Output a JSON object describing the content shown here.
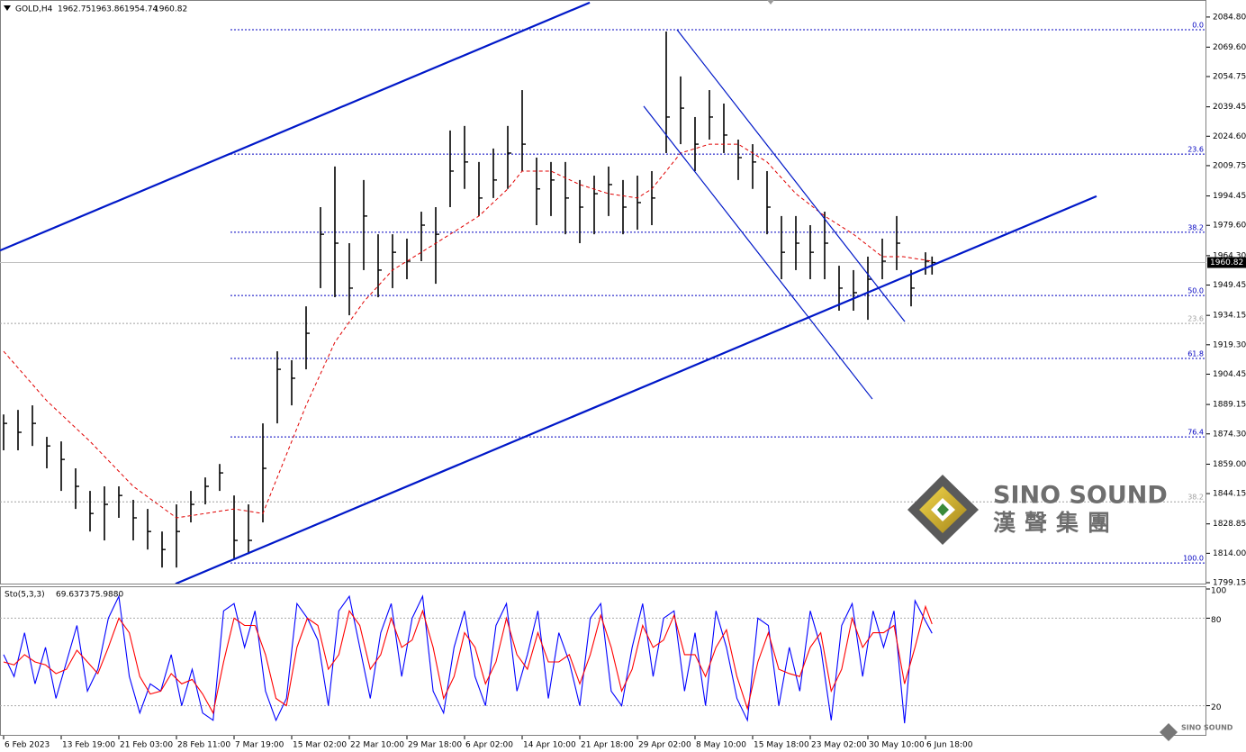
{
  "chart_data": {
    "type": "hlc",
    "symbol": "GOLD,H4",
    "ohlc": [
      1962.75,
      1963.86,
      1954.74,
      1960.82
    ],
    "last_price": 1960.82,
    "color": "#000000",
    "x": [
      0,
      11,
      22,
      33,
      44,
      55,
      66,
      77,
      88,
      99,
      110,
      121,
      132,
      143,
      154,
      165,
      176,
      187,
      198,
      209,
      220,
      231,
      242,
      253,
      264,
      275,
      286,
      297,
      308,
      319,
      330,
      341,
      352,
      363,
      374,
      385,
      396,
      407,
      418,
      429,
      440,
      451,
      462,
      473,
      484,
      495,
      506,
      517,
      528,
      539,
      550,
      561,
      572,
      583,
      594,
      605,
      616,
      627,
      638,
      649,
      660,
      671,
      682,
      693,
      704,
      709
    ],
    "high": [
      1884.1,
      1886.4,
      1888.7,
      1872.8,
      1870.5,
      1856.9,
      1845.5,
      1847.8,
      1847.8,
      1841.0,
      1836.4,
      1825.0,
      1838.7,
      1845.5,
      1852.3,
      1859.1,
      1843.2,
      1838.7,
      1879.6,
      1916.0,
      1911.5,
      1938.7,
      1988.8,
      2009.3,
      1970.6,
      2002.5,
      1975.1,
      1975.1,
      1972.9,
      1986.5,
      1988.8,
      2027.5,
      2029.8,
      2011.6,
      2018.4,
      2029.8,
      2047.9,
      2013.8,
      2011.6,
      2011.6,
      2002.5,
      2004.7,
      2009.3,
      2002.5,
      2004.7,
      2007.0,
      2077.5,
      2054.8,
      2034.3,
      2047.9,
      2041.1,
      2022.9,
      2020.6,
      2007.0,
      1984.3,
      1984.3,
      1979.7,
      1986.5,
      1959.2,
      1957.0,
      1963.8,
      1972.9,
      1984.3,
      1957.0,
      1966.0,
      1963.86
    ],
    "low": [
      1866.0,
      1866.0,
      1868.2,
      1856.9,
      1845.5,
      1836.4,
      1825.0,
      1820.5,
      1831.9,
      1820.5,
      1815.9,
      1806.8,
      1806.8,
      1829.6,
      1838.7,
      1845.5,
      1811.4,
      1813.6,
      1829.6,
      1879.6,
      1888.7,
      1906.9,
      1947.9,
      1943.3,
      1934.2,
      1957.0,
      1943.3,
      1947.9,
      1952.4,
      1961.5,
      1950.1,
      1988.8,
      1998.0,
      1984.3,
      1993.4,
      1998.0,
      2007.0,
      1979.7,
      1984.3,
      1975.1,
      1970.6,
      1975.1,
      1984.3,
      1975.1,
      1977.4,
      1979.7,
      2016.1,
      2020.6,
      2007.0,
      2022.9,
      2016.1,
      2002.5,
      1998.0,
      1975.1,
      1952.4,
      1957.0,
      1952.4,
      1952.4,
      1936.5,
      1936.5,
      1931.9,
      1952.4,
      1957.0,
      1938.7,
      1954.7,
      1954.74
    ],
    "close": [
      1879.6,
      1875.1,
      1879.6,
      1868.2,
      1861.4,
      1847.8,
      1834.1,
      1838.7,
      1843.2,
      1831.9,
      1825.0,
      1815.9,
      1825.0,
      1838.7,
      1847.8,
      1854.6,
      1820.5,
      1820.5,
      1856.9,
      1906.9,
      1902.4,
      1925.1,
      1975.1,
      1970.6,
      1947.9,
      1984.3,
      1957.0,
      1966.0,
      1961.5,
      1979.7,
      1975.1,
      2007.0,
      2011.6,
      1993.4,
      2002.5,
      2016.1,
      2020.6,
      1998.0,
      2002.5,
      1993.4,
      1988.8,
      1995.6,
      2000.2,
      1988.8,
      1991.1,
      1993.4,
      2034.3,
      2038.8,
      2020.6,
      2034.3,
      2025.2,
      2013.8,
      2011.6,
      1988.8,
      1966.0,
      1970.6,
      1966.0,
      1970.6,
      1947.9,
      1945.6,
      1952.4,
      1961.5,
      1970.6,
      1947.9,
      1961.5,
      1960.82
    ],
    "ma": {
      "color": "#e00000",
      "x": [
        0,
        33,
        66,
        99,
        132,
        154,
        176,
        198,
        209,
        231,
        253,
        275,
        297,
        319,
        341,
        363,
        385,
        396,
        418,
        440,
        462,
        484,
        495,
        517,
        539,
        561,
        583,
        605,
        627,
        649,
        671,
        687,
        709
      ],
      "values": [
        1916.0,
        1891.0,
        1870.5,
        1847.8,
        1831.9,
        1834.1,
        1836.4,
        1834.1,
        1852.3,
        1888.7,
        1920.6,
        1941.0,
        1957.0,
        1966.0,
        1975.1,
        1984.3,
        1998.0,
        2007.0,
        2007.0,
        2000.2,
        1995.6,
        1993.4,
        1998.0,
        2016.1,
        2020.6,
        2020.6,
        2011.6,
        1995.6,
        1984.3,
        1975.1,
        1963.8,
        1963.8,
        1961.5
      ]
    },
    "xlim": [
      -2.75,
      918.5
    ],
    "xticks": [
      {
        "value": 0,
        "label": "6 Feb 2023"
      },
      {
        "value": 44,
        "label": "13 Feb 19:00"
      },
      {
        "value": 88,
        "label": "21 Feb 03:00"
      },
      {
        "value": 132,
        "label": "28 Feb 11:00"
      },
      {
        "value": 176,
        "label": "7 Mar 19:00"
      },
      {
        "value": 220,
        "label": "15 Mar 02:00"
      },
      {
        "value": 264,
        "label": "22 Mar 10:00"
      },
      {
        "value": 308,
        "label": "29 Mar 18:00"
      },
      {
        "value": 352,
        "label": "6 Apr 02:00"
      },
      {
        "value": 396,
        "label": "14 Apr 10:00"
      },
      {
        "value": 440,
        "label": "21 Apr 18:00"
      },
      {
        "value": 484,
        "label": "29 Apr 02:00"
      },
      {
        "value": 528,
        "label": "8 May 10:00"
      },
      {
        "value": 572,
        "label": "15 May 18:00"
      },
      {
        "value": 616,
        "label": "23 May 02:00"
      },
      {
        "value": 660,
        "label": "30 May 10:00"
      },
      {
        "value": 704,
        "label": "6 Jun 18:00"
      }
    ],
    "ylim": [
      1798.7,
      2093.4
    ],
    "yticks": [
      {
        "value": 2084.8,
        "label": "2084.80"
      },
      {
        "value": 2069.6,
        "label": "2069.60"
      },
      2054.75,
      2039.45,
      {
        "value": 2024.6,
        "label": "2024.60"
      },
      2009.75,
      1994.45,
      {
        "value": 1979.6,
        "label": "1979.60"
      },
      {
        "value": 1964.3,
        "label": "1964.30"
      },
      1949.45,
      1934.15,
      {
        "value": 1919.3,
        "label": "1919.30"
      },
      1904.45,
      1889.15,
      {
        "value": 1874.3,
        "label": "1874.30"
      },
      {
        "value": 1859,
        "label": "1859.00"
      },
      1844.15,
      1828.85,
      {
        "value": 1814,
        "label": "1814.00"
      },
      1799.15
    ],
    "fib_color": "#0000c0",
    "fib_levels": [
      {
        "value": 2078.4,
        "label": "0.0"
      },
      {
        "value": 2015.6,
        "label": "23.6"
      },
      {
        "value": 1976.1,
        "label": "38.2"
      },
      {
        "value": 1944.2,
        "label": "50.0"
      },
      {
        "value": 1912.4,
        "label": "61.8"
      },
      {
        "value": 1872.8,
        "label": "76.4"
      },
      {
        "value": 1809.1,
        "label": "100.0"
      }
    ],
    "old_fib_color": "#a0a0a0",
    "old_fib_levels": [
      {
        "value": 1930.1,
        "label": "23.6"
      },
      {
        "value": 1840.0,
        "label": "38.2"
      }
    ],
    "line_color": "#0018c8",
    "channel_lines": [
      {
        "x": [
          -2.75,
          447.6
        ],
        "y": [
          1966.9,
          2092.1
        ]
      },
      {
        "x": [
          131.3,
          834.6
        ],
        "y": [
          1798.6,
          1994.3
        ]
      }
    ],
    "trend_lines": [
      {
        "x": [
          488.8,
          663.4
        ],
        "y": [
          2039.8,
          1891.9
        ]
      },
      {
        "x": [
          514.25,
          688.2
        ],
        "y": [
          2078.4,
          1931.0
        ]
      }
    ],
    "stochastic": {
      "label": "Sto(5,3,3)",
      "readout": [
        {
          "value": 69.6373,
          "label": "69.6373"
        },
        {
          "value": 75.988,
          "label": "75.9880"
        }
      ],
      "ylim": [
        0,
        100
      ],
      "yticks": [
        20,
        80,
        100
      ],
      "levels": [
        20,
        80
      ],
      "x": [
        0,
        8,
        16,
        24,
        32,
        40,
        48,
        56,
        64,
        72,
        80,
        88,
        96,
        104,
        112,
        120,
        128,
        136,
        144,
        152,
        160,
        168,
        176,
        184,
        192,
        200,
        208,
        216,
        224,
        232,
        240,
        248,
        256,
        264,
        272,
        280,
        288,
        296,
        304,
        312,
        320,
        328,
        336,
        344,
        352,
        360,
        368,
        376,
        384,
        392,
        400,
        408,
        416,
        424,
        432,
        440,
        448,
        456,
        464,
        472,
        480,
        488,
        496,
        504,
        512,
        520,
        528,
        536,
        544,
        552,
        560,
        568,
        576,
        584,
        592,
        600,
        608,
        616,
        624,
        632,
        640,
        648,
        656,
        664,
        672,
        680,
        688,
        696,
        704,
        709
      ],
      "series": [
        {
          "color": "#0000ff",
          "values": [
            55,
            40,
            70,
            35,
            60,
            25,
            50,
            75,
            30,
            45,
            80,
            95,
            40,
            15,
            35,
            30,
            55,
            20,
            45,
            15,
            10,
            85,
            90,
            60,
            85,
            30,
            10,
            25,
            90,
            80,
            65,
            20,
            85,
            95,
            60,
            25,
            70,
            90,
            40,
            80,
            95,
            30,
            15,
            60,
            85,
            40,
            20,
            75,
            90,
            30,
            55,
            85,
            25,
            70,
            50,
            20,
            80,
            90,
            30,
            20,
            60,
            90,
            40,
            80,
            85,
            30,
            70,
            20,
            85,
            60,
            25,
            10,
            80,
            75,
            20,
            60,
            30,
            85,
            60,
            10,
            75,
            90,
            40,
            85,
            60,
            85,
            8,
            92,
            78,
            69.6373
          ]
        },
        {
          "color": "#ff0000",
          "values": [
            50,
            48,
            55,
            50,
            48,
            42,
            45,
            58,
            50,
            42,
            60,
            80,
            70,
            40,
            28,
            30,
            42,
            35,
            38,
            28,
            15,
            50,
            80,
            75,
            75,
            55,
            25,
            20,
            60,
            80,
            75,
            45,
            55,
            85,
            75,
            45,
            55,
            80,
            60,
            65,
            85,
            60,
            25,
            40,
            70,
            60,
            35,
            50,
            80,
            55,
            45,
            70,
            50,
            50,
            55,
            35,
            55,
            82,
            60,
            30,
            45,
            75,
            60,
            65,
            82,
            55,
            55,
            40,
            60,
            72,
            40,
            18,
            50,
            70,
            45,
            42,
            40,
            60,
            70,
            30,
            45,
            80,
            60,
            70,
            70,
            75,
            35,
            60,
            88,
            75.988
          ]
        }
      ]
    }
  },
  "logo": {
    "name": "SINO SOUND",
    "chinese": "漢聲集團"
  }
}
